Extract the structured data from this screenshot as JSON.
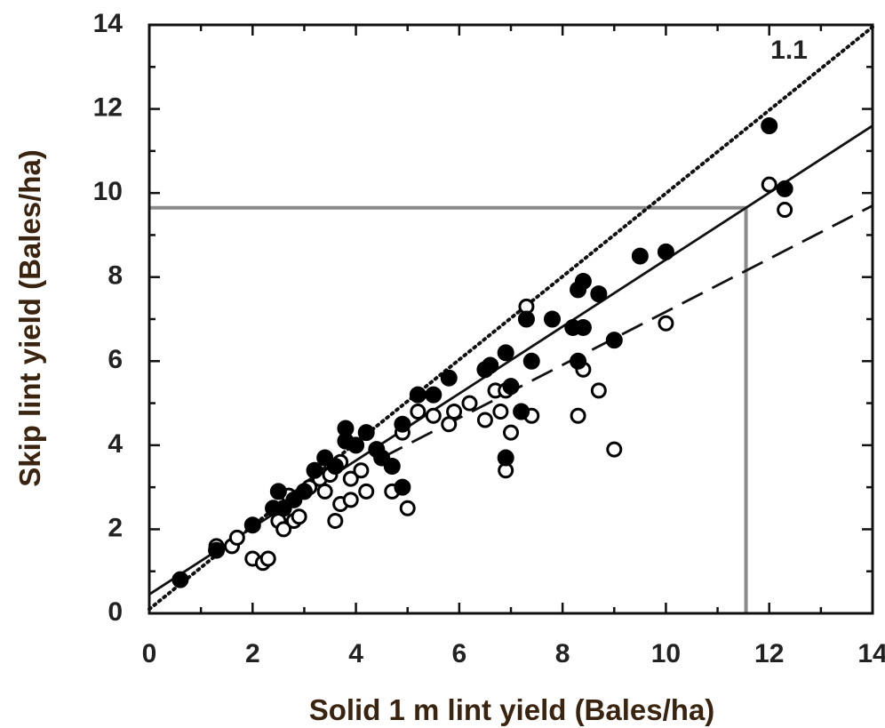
{
  "chart_data": {
    "type": "scatter",
    "xlabel": "Solid 1 m lint yield (Bales/ha)",
    "ylabel": "Skip lint yield (Bales/ha)",
    "xlim": [
      0,
      14
    ],
    "ylim": [
      0,
      14
    ],
    "x_ticks": [
      "0",
      "2",
      "4",
      "6",
      "8",
      "10",
      "12",
      "14"
    ],
    "y_ticks": [
      "0",
      "2",
      "4",
      "6",
      "8",
      "10",
      "12",
      "14"
    ],
    "grid": false,
    "annotations": [
      {
        "text": "1.1",
        "x": 12.7,
        "y": 13.5
      }
    ],
    "colors": {
      "axis": "#111111",
      "reference": "#8a8a8a",
      "marker": "#000000"
    },
    "series": [
      {
        "marker": "filled-circle",
        "points": [
          [
            0.6,
            0.8
          ],
          [
            1.3,
            1.5
          ],
          [
            2.0,
            2.1
          ],
          [
            2.4,
            2.5
          ],
          [
            2.5,
            2.9
          ],
          [
            2.6,
            2.5
          ],
          [
            2.8,
            2.7
          ],
          [
            3.0,
            2.9
          ],
          [
            3.2,
            3.4
          ],
          [
            3.4,
            3.7
          ],
          [
            3.6,
            3.5
          ],
          [
            3.8,
            4.1
          ],
          [
            3.8,
            4.4
          ],
          [
            4.0,
            4.0
          ],
          [
            4.2,
            4.3
          ],
          [
            4.4,
            3.9
          ],
          [
            4.5,
            3.7
          ],
          [
            4.7,
            3.5
          ],
          [
            4.9,
            4.5
          ],
          [
            4.9,
            3.0
          ],
          [
            5.2,
            5.2
          ],
          [
            5.5,
            5.2
          ],
          [
            5.8,
            5.6
          ],
          [
            6.5,
            5.8
          ],
          [
            6.6,
            5.9
          ],
          [
            6.9,
            6.2
          ],
          [
            6.9,
            3.7
          ],
          [
            7.0,
            5.4
          ],
          [
            7.2,
            4.8
          ],
          [
            7.3,
            7.0
          ],
          [
            7.4,
            6.0
          ],
          [
            7.8,
            7.0
          ],
          [
            8.2,
            6.8
          ],
          [
            8.3,
            7.7
          ],
          [
            8.3,
            6.0
          ],
          [
            8.4,
            7.9
          ],
          [
            8.4,
            6.8
          ],
          [
            8.7,
            7.6
          ],
          [
            9.0,
            6.5
          ],
          [
            9.5,
            8.5
          ],
          [
            10.0,
            8.6
          ],
          [
            12.0,
            11.6
          ],
          [
            12.3,
            10.1
          ]
        ]
      },
      {
        "marker": "open-circle",
        "points": [
          [
            1.3,
            1.6
          ],
          [
            1.6,
            1.6
          ],
          [
            1.7,
            1.8
          ],
          [
            2.0,
            1.3
          ],
          [
            2.2,
            1.2
          ],
          [
            2.3,
            1.3
          ],
          [
            2.5,
            2.2
          ],
          [
            2.6,
            2.0
          ],
          [
            2.7,
            2.8
          ],
          [
            2.8,
            2.2
          ],
          [
            2.9,
            2.3
          ],
          [
            3.1,
            3.0
          ],
          [
            3.3,
            3.2
          ],
          [
            3.4,
            2.9
          ],
          [
            3.5,
            3.3
          ],
          [
            3.6,
            2.2
          ],
          [
            3.7,
            3.6
          ],
          [
            3.7,
            2.6
          ],
          [
            3.9,
            3.2
          ],
          [
            3.9,
            2.7
          ],
          [
            4.1,
            3.4
          ],
          [
            4.2,
            2.9
          ],
          [
            4.4,
            3.9
          ],
          [
            4.5,
            3.7
          ],
          [
            4.7,
            2.9
          ],
          [
            4.9,
            4.3
          ],
          [
            5.0,
            2.5
          ],
          [
            5.2,
            4.8
          ],
          [
            5.5,
            4.7
          ],
          [
            5.8,
            4.5
          ],
          [
            5.9,
            4.8
          ],
          [
            6.2,
            5.0
          ],
          [
            6.5,
            4.6
          ],
          [
            6.7,
            5.3
          ],
          [
            6.8,
            4.8
          ],
          [
            6.9,
            5.3
          ],
          [
            6.9,
            3.4
          ],
          [
            7.0,
            4.3
          ],
          [
            7.2,
            4.8
          ],
          [
            7.3,
            7.3
          ],
          [
            7.4,
            4.7
          ],
          [
            8.3,
            4.7
          ],
          [
            8.4,
            5.8
          ],
          [
            8.7,
            5.3
          ],
          [
            9.0,
            3.9
          ],
          [
            10.0,
            6.9
          ],
          [
            12.0,
            10.2
          ],
          [
            12.3,
            9.6
          ]
        ]
      }
    ],
    "lines": [
      {
        "style": "dotted",
        "from": [
          0,
          0.1
        ],
        "to": [
          14,
          13.95
        ]
      },
      {
        "style": "solid",
        "from": [
          0,
          0.45
        ],
        "to": [
          14,
          11.6
        ]
      },
      {
        "style": "dashed",
        "from": [
          4.5,
          3.7
        ],
        "to": [
          14,
          9.7
        ]
      }
    ],
    "reference_lines": [
      {
        "orientation": "horizontal",
        "y": 9.65,
        "x_from": 0,
        "x_to": 11.55
      },
      {
        "orientation": "vertical",
        "x": 11.55,
        "y_from": 0,
        "y_to": 9.65
      }
    ]
  }
}
